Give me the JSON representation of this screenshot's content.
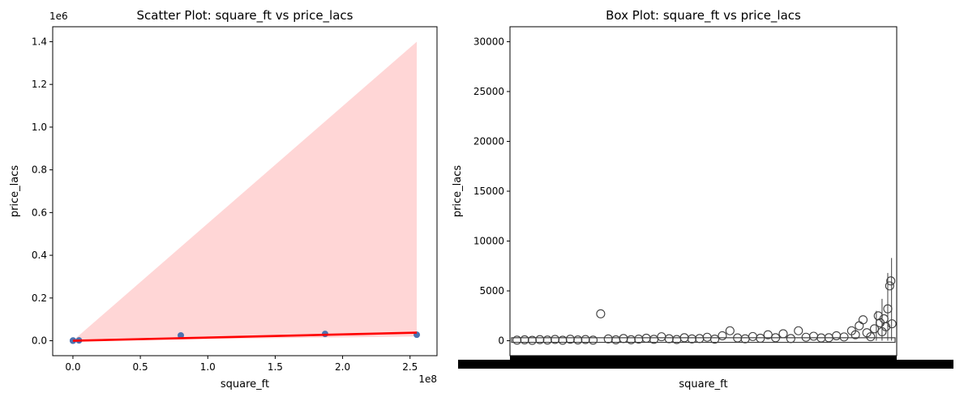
{
  "chart_data": [
    {
      "type": "scatter",
      "title": "Scatter Plot: square_ft vs price_lacs",
      "xlabel": "square_ft",
      "ylabel": "price_lacs",
      "x_offset_label": "1e8",
      "y_offset_label": "1e6",
      "xlim": [
        -15000000,
        270000000
      ],
      "ylim": [
        -70000,
        1470000
      ],
      "x_ticks": [
        0,
        50000000,
        100000000,
        150000000,
        200000000,
        250000000
      ],
      "x_tick_labels": [
        "0.0",
        "0.5",
        "1.0",
        "1.5",
        "2.0",
        "2.5"
      ],
      "y_ticks": [
        0,
        200000,
        400000,
        600000,
        800000,
        1000000,
        1200000,
        1400000
      ],
      "y_tick_labels": [
        "0.0",
        "0.2",
        "0.4",
        "0.6",
        "0.8",
        "1.0",
        "1.2",
        "1.4"
      ],
      "points": [
        {
          "x": 0,
          "y": 0
        },
        {
          "x": 50000,
          "y": 500
        },
        {
          "x": 100000,
          "y": 1000
        },
        {
          "x": 4500000,
          "y": 1500
        },
        {
          "x": 80000000,
          "y": 25000
        },
        {
          "x": 187000000,
          "y": 32000
        },
        {
          "x": 255000000,
          "y": 28000
        }
      ],
      "regression_line": {
        "x": [
          0,
          255000000
        ],
        "y": [
          0,
          38000
        ]
      },
      "confidence_band": {
        "x": [
          0,
          255000000
        ],
        "lower": [
          0,
          20000
        ],
        "upper": [
          0,
          1400000
        ]
      },
      "grid": false,
      "colors": {
        "points": "#4c72b0",
        "line": "#ff0000",
        "band": "#ffd6d6"
      }
    },
    {
      "type": "box",
      "title": "Box Plot: square_ft vs price_lacs",
      "xlabel": "square_ft",
      "ylabel": "price_lacs",
      "ylim": [
        -1500,
        31500
      ],
      "y_ticks": [
        0,
        5000,
        10000,
        15000,
        20000,
        25000,
        30000
      ],
      "y_tick_labels": [
        "0",
        "5000",
        "10000",
        "15000",
        "20000",
        "25000",
        "30000"
      ],
      "x_tick_labels_note_visible": "",
      "outliers": [
        {
          "pos": 0.01,
          "y": 60
        },
        {
          "pos": 0.03,
          "y": 90
        },
        {
          "pos": 0.05,
          "y": 40
        },
        {
          "pos": 0.07,
          "y": 110
        },
        {
          "pos": 0.09,
          "y": 70
        },
        {
          "pos": 0.11,
          "y": 130
        },
        {
          "pos": 0.13,
          "y": 50
        },
        {
          "pos": 0.15,
          "y": 150
        },
        {
          "pos": 0.17,
          "y": 80
        },
        {
          "pos": 0.19,
          "y": 120
        },
        {
          "pos": 0.21,
          "y": 60
        },
        {
          "pos": 0.23,
          "y": 2700
        },
        {
          "pos": 0.25,
          "y": 180
        },
        {
          "pos": 0.27,
          "y": 90
        },
        {
          "pos": 0.29,
          "y": 220
        },
        {
          "pos": 0.31,
          "y": 100
        },
        {
          "pos": 0.33,
          "y": 160
        },
        {
          "pos": 0.35,
          "y": 250
        },
        {
          "pos": 0.37,
          "y": 140
        },
        {
          "pos": 0.39,
          "y": 400
        },
        {
          "pos": 0.41,
          "y": 200
        },
        {
          "pos": 0.43,
          "y": 120
        },
        {
          "pos": 0.45,
          "y": 300
        },
        {
          "pos": 0.47,
          "y": 180
        },
        {
          "pos": 0.49,
          "y": 220
        },
        {
          "pos": 0.51,
          "y": 350
        },
        {
          "pos": 0.53,
          "y": 160
        },
        {
          "pos": 0.55,
          "y": 500
        },
        {
          "pos": 0.57,
          "y": 1000
        },
        {
          "pos": 0.59,
          "y": 280
        },
        {
          "pos": 0.61,
          "y": 190
        },
        {
          "pos": 0.63,
          "y": 420
        },
        {
          "pos": 0.65,
          "y": 250
        },
        {
          "pos": 0.67,
          "y": 600
        },
        {
          "pos": 0.69,
          "y": 300
        },
        {
          "pos": 0.71,
          "y": 700
        },
        {
          "pos": 0.73,
          "y": 220
        },
        {
          "pos": 0.75,
          "y": 1000
        },
        {
          "pos": 0.77,
          "y": 350
        },
        {
          "pos": 0.79,
          "y": 450
        },
        {
          "pos": 0.81,
          "y": 280
        },
        {
          "pos": 0.83,
          "y": 300
        },
        {
          "pos": 0.85,
          "y": 500
        },
        {
          "pos": 0.87,
          "y": 380
        },
        {
          "pos": 0.89,
          "y": 1000
        },
        {
          "pos": 0.9,
          "y": 600
        },
        {
          "pos": 0.91,
          "y": 1500
        },
        {
          "pos": 0.92,
          "y": 2100
        },
        {
          "pos": 0.93,
          "y": 800
        },
        {
          "pos": 0.94,
          "y": 400
        },
        {
          "pos": 0.95,
          "y": 1200
        },
        {
          "pos": 0.96,
          "y": 2500
        },
        {
          "pos": 0.965,
          "y": 1800
        },
        {
          "pos": 0.97,
          "y": 900
        },
        {
          "pos": 0.975,
          "y": 2200
        },
        {
          "pos": 0.98,
          "y": 1400
        },
        {
          "pos": 0.985,
          "y": 3200
        },
        {
          "pos": 0.99,
          "y": 5500
        },
        {
          "pos": 0.993,
          "y": 6000
        },
        {
          "pos": 0.996,
          "y": 1700
        }
      ],
      "colors": {
        "outline": "#3f3f3f",
        "axis": "#000000"
      }
    }
  ]
}
